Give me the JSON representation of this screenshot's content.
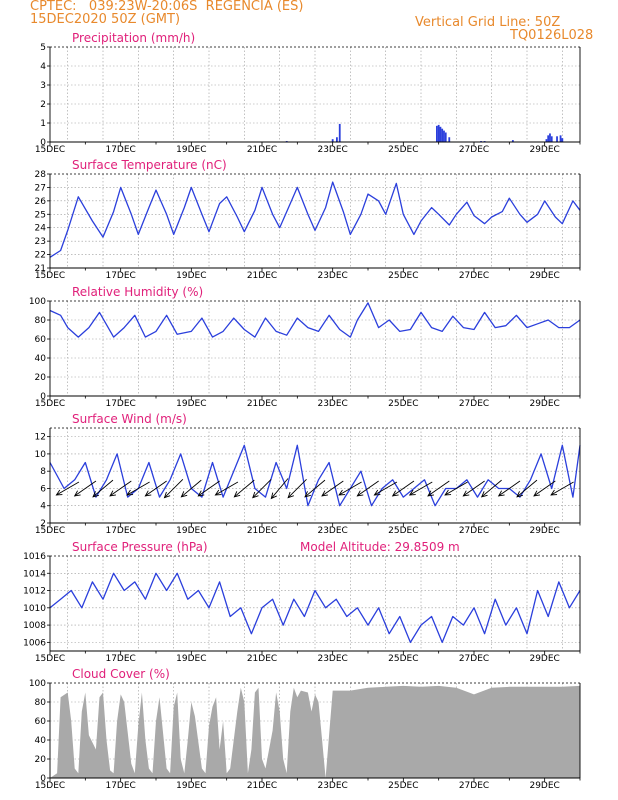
{
  "header": {
    "line1_left": "CPTEC:   039:23W-20:06S  REGENCIA (ES)",
    "line2_left": "15DEC2020 50Z (GMT)",
    "line1_right": "Vertical Grid Line: 50Z",
    "line2_right": "TQ0126L028"
  },
  "colors": {
    "header": "#e8892c",
    "panel_title": "#e0207a",
    "series": "#2b3fdc",
    "cloud": "#a9a9a9"
  },
  "chart_data": [
    {
      "type": "bar",
      "title": "Precipitation (mm/h)",
      "ylim": [
        0,
        5
      ],
      "yticks": [
        0,
        1,
        2,
        3,
        4,
        5
      ],
      "xlim": [
        0,
        15
      ],
      "xtick_labels": [
        "15DEC",
        "17DEC",
        "19DEC",
        "21DEC",
        "23DEC",
        "25DEC",
        "27DEC",
        "29DEC"
      ],
      "x": [
        6.7,
        8.0,
        8.12,
        8.2,
        10.95,
        11.0,
        11.05,
        11.1,
        11.15,
        11.2,
        11.3,
        12.2,
        12.3,
        13.1,
        14.05,
        14.1,
        14.15,
        14.2,
        14.35,
        14.45,
        14.5
      ],
      "values": [
        0.05,
        0.15,
        0.25,
        0.95,
        0.85,
        0.9,
        0.8,
        0.7,
        0.6,
        0.5,
        0.25,
        0.05,
        0.05,
        0.1,
        0.15,
        0.35,
        0.45,
        0.3,
        0.3,
        0.35,
        0.2
      ],
      "grid": true
    },
    {
      "type": "line",
      "title": "Surface Temperature (nC)",
      "ylim": [
        21,
        28
      ],
      "yticks": [
        21,
        22,
        23,
        24,
        25,
        26,
        27,
        28
      ],
      "xlim": [
        0,
        15
      ],
      "xtick_labels": [
        "15DEC",
        "17DEC",
        "19DEC",
        "21DEC",
        "23DEC",
        "25DEC",
        "27DEC",
        "29DEC"
      ],
      "x": [
        0,
        0.3,
        0.5,
        0.8,
        1.2,
        1.5,
        1.8,
        2.0,
        2.3,
        2.5,
        2.8,
        3.0,
        3.3,
        3.5,
        3.8,
        4.0,
        4.3,
        4.5,
        4.8,
        5.0,
        5.3,
        5.5,
        5.8,
        6.0,
        6.3,
        6.5,
        6.8,
        7.0,
        7.3,
        7.5,
        7.8,
        8.0,
        8.3,
        8.5,
        8.8,
        9.0,
        9.3,
        9.5,
        9.8,
        10.0,
        10.3,
        10.5,
        10.8,
        11.0,
        11.3,
        11.5,
        11.8,
        12.0,
        12.3,
        12.5,
        12.8,
        13.0,
        13.3,
        13.5,
        13.8,
        14.0,
        14.3,
        14.5,
        14.8,
        15.0
      ],
      "series": [
        {
          "values": [
            21.8,
            22.3,
            23.8,
            26.3,
            24.5,
            23.3,
            25.2,
            27.0,
            25.0,
            23.5,
            25.5,
            26.8,
            25.0,
            23.5,
            25.5,
            27.0,
            25.0,
            23.7,
            25.8,
            26.3,
            24.8,
            23.7,
            25.3,
            27.0,
            25.0,
            24.0,
            25.8,
            27.0,
            25.0,
            23.8,
            25.5,
            27.4,
            25.2,
            23.5,
            25.0,
            26.5,
            26.0,
            25.0,
            27.3,
            25.0,
            23.5,
            24.5,
            25.5,
            25.0,
            24.2,
            25.0,
            25.9,
            24.9,
            24.3,
            24.8,
            25.2,
            26.2,
            25.0,
            24.4,
            25.0,
            26.0,
            24.8,
            24.3,
            26.0,
            25.3
          ]
        }
      ],
      "grid": true
    },
    {
      "type": "line",
      "title": "Relative Humidity (%)",
      "ylim": [
        0,
        100
      ],
      "yticks": [
        0,
        20,
        40,
        60,
        80,
        100
      ],
      "xlim": [
        0,
        15
      ],
      "xtick_labels": [
        "15DEC",
        "17DEC",
        "19DEC",
        "21DEC",
        "23DEC",
        "25DEC",
        "27DEC",
        "29DEC"
      ],
      "x": [
        0,
        0.3,
        0.5,
        0.8,
        1.1,
        1.4,
        1.8,
        2.1,
        2.4,
        2.7,
        3.0,
        3.3,
        3.6,
        4.0,
        4.3,
        4.6,
        4.9,
        5.2,
        5.5,
        5.8,
        6.1,
        6.4,
        6.7,
        7.0,
        7.3,
        7.6,
        7.9,
        8.2,
        8.5,
        8.7,
        9.0,
        9.3,
        9.6,
        9.9,
        10.2,
        10.5,
        10.8,
        11.1,
        11.4,
        11.7,
        12.0,
        12.3,
        12.6,
        12.9,
        13.2,
        13.5,
        13.8,
        14.1,
        14.4,
        14.7,
        15.0
      ],
      "series": [
        {
          "values": [
            90,
            85,
            72,
            62,
            72,
            88,
            62,
            72,
            85,
            62,
            68,
            85,
            65,
            68,
            82,
            62,
            68,
            82,
            70,
            62,
            82,
            68,
            64,
            82,
            72,
            68,
            85,
            70,
            62,
            80,
            98,
            72,
            80,
            68,
            70,
            88,
            72,
            68,
            84,
            72,
            70,
            88,
            72,
            74,
            85,
            72,
            76,
            80,
            72,
            72,
            80
          ]
        }
      ],
      "grid": true
    },
    {
      "type": "line",
      "title": "Surface Wind (m/s)",
      "ylim": [
        2,
        13
      ],
      "yticks": [
        2,
        4,
        6,
        8,
        10,
        12
      ],
      "xlim": [
        0,
        15
      ],
      "xtick_labels": [
        "15DEC",
        "17DEC",
        "19DEC",
        "21DEC",
        "23DEC",
        "25DEC",
        "27DEC",
        "29DEC"
      ],
      "x": [
        0,
        0.4,
        0.7,
        1.0,
        1.3,
        1.6,
        1.9,
        2.2,
        2.5,
        2.8,
        3.1,
        3.4,
        3.7,
        4.0,
        4.3,
        4.6,
        4.9,
        5.2,
        5.5,
        5.8,
        6.1,
        6.4,
        6.7,
        7.0,
        7.3,
        7.6,
        7.9,
        8.2,
        8.5,
        8.8,
        9.1,
        9.4,
        9.7,
        10.0,
        10.3,
        10.6,
        10.9,
        11.2,
        11.5,
        11.8,
        12.1,
        12.4,
        12.7,
        13.0,
        13.3,
        13.6,
        13.9,
        14.2,
        14.5,
        14.8,
        15.0
      ],
      "series": [
        {
          "values": [
            9,
            6,
            7,
            9,
            5,
            7,
            10,
            5,
            6,
            9,
            5,
            7,
            10,
            6,
            5,
            9,
            5,
            8,
            11,
            6,
            5,
            9,
            6,
            11,
            4,
            7,
            9,
            4,
            6,
            8,
            4,
            6,
            7,
            5,
            6,
            7,
            4,
            6,
            6,
            7,
            5,
            7,
            6,
            6,
            5,
            7,
            10,
            6,
            11,
            5,
            11
          ]
        }
      ],
      "grid": true
    },
    {
      "type": "line",
      "title": "Surface Pressure (hPa)",
      "annotation": "Model Altitude: 29.8509 m",
      "ylim": [
        1005,
        1016
      ],
      "yticks": [
        1006,
        1008,
        1010,
        1012,
        1014,
        1016
      ],
      "xlim": [
        0,
        15
      ],
      "xtick_labels": [
        "15DEC",
        "17DEC",
        "19DEC",
        "21DEC",
        "23DEC",
        "25DEC",
        "27DEC",
        "29DEC"
      ],
      "x": [
        0,
        0.3,
        0.6,
        0.9,
        1.2,
        1.5,
        1.8,
        2.1,
        2.4,
        2.7,
        3.0,
        3.3,
        3.6,
        3.9,
        4.2,
        4.5,
        4.8,
        5.1,
        5.4,
        5.7,
        6.0,
        6.3,
        6.6,
        6.9,
        7.2,
        7.5,
        7.8,
        8.1,
        8.4,
        8.7,
        9.0,
        9.3,
        9.6,
        9.9,
        10.2,
        10.5,
        10.8,
        11.1,
        11.4,
        11.7,
        12.0,
        12.3,
        12.6,
        12.9,
        13.2,
        13.5,
        13.8,
        14.1,
        14.4,
        14.7,
        15.0
      ],
      "series": [
        {
          "values": [
            1010,
            1011,
            1012,
            1010,
            1013,
            1011,
            1014,
            1012,
            1013,
            1011,
            1014,
            1012,
            1014,
            1011,
            1012,
            1010,
            1013,
            1009,
            1010,
            1007,
            1010,
            1011,
            1008,
            1011,
            1009,
            1012,
            1010,
            1011,
            1009,
            1010,
            1008,
            1010,
            1007,
            1009,
            1006,
            1008,
            1009,
            1006,
            1009,
            1008,
            1010,
            1007,
            1011,
            1008,
            1010,
            1007,
            1012,
            1009,
            1013,
            1010,
            1012
          ]
        }
      ],
      "grid": true
    },
    {
      "type": "area",
      "title": "Cloud Cover (%)",
      "ylim": [
        0,
        100
      ],
      "yticks": [
        0,
        20,
        40,
        60,
        80,
        100
      ],
      "xlim": [
        0,
        15
      ],
      "xtick_labels": [
        "15DEC",
        "17DEC",
        "19DEC",
        "21DEC",
        "23DEC",
        "25DEC",
        "27DEC",
        "29DEC"
      ],
      "x": [
        0,
        0.2,
        0.3,
        0.5,
        0.6,
        0.7,
        0.8,
        0.9,
        1.0,
        1.1,
        1.3,
        1.4,
        1.5,
        1.6,
        1.7,
        1.8,
        1.9,
        2.0,
        2.1,
        2.3,
        2.4,
        2.5,
        2.6,
        2.7,
        2.8,
        2.9,
        3.0,
        3.1,
        3.3,
        3.4,
        3.5,
        3.6,
        3.7,
        3.8,
        3.9,
        4.0,
        4.1,
        4.3,
        4.4,
        4.5,
        4.6,
        4.7,
        4.8,
        4.9,
        5.0,
        5.1,
        5.3,
        5.4,
        5.5,
        5.6,
        5.7,
        5.8,
        5.9,
        6.0,
        6.1,
        6.3,
        6.4,
        6.5,
        6.6,
        6.7,
        6.8,
        6.9,
        7.0,
        7.1,
        7.3,
        7.4,
        7.5,
        7.6,
        7.7,
        7.8,
        8.0,
        8.5,
        9.0,
        9.5,
        10.0,
        10.5,
        11.0,
        11.5,
        12.0,
        12.5,
        13.0,
        13.5,
        14.0,
        14.5,
        15.0
      ],
      "series": [
        {
          "values": [
            0,
            5,
            85,
            90,
            60,
            10,
            5,
            70,
            90,
            45,
            30,
            85,
            90,
            40,
            8,
            5,
            60,
            88,
            80,
            15,
            5,
            55,
            90,
            40,
            10,
            5,
            60,
            85,
            10,
            5,
            75,
            90,
            20,
            5,
            40,
            80,
            65,
            10,
            5,
            55,
            75,
            85,
            30,
            60,
            5,
            10,
            70,
            95,
            80,
            5,
            30,
            90,
            95,
            20,
            10,
            50,
            90,
            70,
            20,
            5,
            70,
            95,
            85,
            92,
            90,
            70,
            88,
            80,
            40,
            0,
            92,
            92,
            95,
            96,
            97,
            96,
            97,
            95,
            88,
            95,
            96,
            96,
            96,
            96,
            97
          ]
        }
      ],
      "grid": true
    }
  ],
  "wind_barbs": [
    {
      "x": 0.5,
      "ang": 30
    },
    {
      "x": 1.0,
      "ang": 35
    },
    {
      "x": 1.5,
      "ang": 40
    },
    {
      "x": 2.0,
      "ang": 35
    },
    {
      "x": 2.5,
      "ang": 30
    },
    {
      "x": 3.0,
      "ang": 35
    },
    {
      "x": 3.5,
      "ang": 45
    },
    {
      "x": 4.0,
      "ang": 40
    },
    {
      "x": 4.5,
      "ang": 35
    },
    {
      "x": 5.0,
      "ang": 30
    },
    {
      "x": 5.5,
      "ang": 40
    },
    {
      "x": 6.0,
      "ang": 45
    },
    {
      "x": 6.5,
      "ang": 50
    },
    {
      "x": 7.0,
      "ang": 45
    },
    {
      "x": 7.5,
      "ang": 40
    },
    {
      "x": 8.0,
      "ang": 35
    },
    {
      "x": 8.5,
      "ang": 30
    },
    {
      "x": 9.0,
      "ang": 35
    },
    {
      "x": 9.5,
      "ang": 30
    },
    {
      "x": 10.0,
      "ang": 35
    },
    {
      "x": 10.5,
      "ang": 30
    },
    {
      "x": 11.0,
      "ang": 35
    },
    {
      "x": 11.5,
      "ang": 30
    },
    {
      "x": 12.0,
      "ang": 35
    },
    {
      "x": 12.5,
      "ang": 40
    },
    {
      "x": 13.0,
      "ang": 35
    },
    {
      "x": 13.5,
      "ang": 40
    },
    {
      "x": 14.0,
      "ang": 35
    },
    {
      "x": 14.5,
      "ang": 30
    }
  ]
}
